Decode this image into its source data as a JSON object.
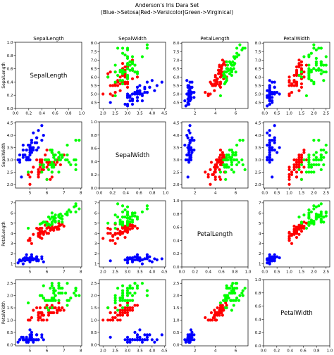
{
  "figure": {
    "title": "Anderson's Iris Dara Set",
    "subtitle": "(Blue->Setosa|Red->Versicolor|Green->Virginical)"
  },
  "chart_data": {
    "type": "scatter",
    "layout": "pairplot",
    "variables": [
      "SepalLength",
      "SepalWidth",
      "PetalLength",
      "PetalWidth"
    ],
    "column_titles": [
      "SepalLength",
      "SepalWidth",
      "PetalLength",
      "PetalWidth"
    ],
    "row_labels": [
      "SepalLength",
      "SepalWidth",
      "PetalLength",
      "PetalWidth"
    ],
    "diagonal_labels": [
      "SepalLength",
      "SepalWidth",
      "PetalLength",
      "PetalWidth"
    ],
    "ranges": {
      "SepalLength": [
        4.15,
        8.05
      ],
      "SepalWidth": [
        1.85,
        4.55
      ],
      "PetalLength": [
        0.7,
        7.2
      ],
      "PetalWidth": [
        -0.05,
        2.65
      ],
      "diagonal": [
        0.0,
        1.0
      ]
    },
    "ticks": {
      "SepalLength": [
        5,
        6,
        7,
        8
      ],
      "SepalLength_as_y": [
        4.5,
        5.0,
        5.5,
        6.0,
        6.5,
        7.0,
        7.5,
        8.0
      ],
      "SepalWidth": [
        2.0,
        2.5,
        3.0,
        3.5,
        4.0,
        4.5
      ],
      "PetalLength": [
        2,
        4,
        6
      ],
      "PetalLength_as_y": [
        1,
        2,
        3,
        4,
        5,
        6,
        7
      ],
      "PetalWidth": [
        0.0,
        0.5,
        1.0,
        1.5,
        2.0,
        2.5
      ],
      "diagonal": [
        0.0,
        0.2,
        0.4,
        0.6,
        0.8,
        1.0
      ]
    },
    "series": [
      {
        "name": "Setosa",
        "color": "#0000ff",
        "points": [
          [
            5.1,
            3.5,
            1.4,
            0.2
          ],
          [
            4.9,
            3.0,
            1.4,
            0.2
          ],
          [
            4.7,
            3.2,
            1.3,
            0.2
          ],
          [
            4.6,
            3.1,
            1.5,
            0.2
          ],
          [
            5.0,
            3.6,
            1.4,
            0.2
          ],
          [
            5.4,
            3.9,
            1.7,
            0.4
          ],
          [
            4.6,
            3.4,
            1.4,
            0.3
          ],
          [
            5.0,
            3.4,
            1.5,
            0.2
          ],
          [
            4.4,
            2.9,
            1.4,
            0.2
          ],
          [
            4.9,
            3.1,
            1.5,
            0.1
          ],
          [
            5.4,
            3.7,
            1.5,
            0.2
          ],
          [
            4.8,
            3.4,
            1.6,
            0.2
          ],
          [
            4.8,
            3.0,
            1.4,
            0.1
          ],
          [
            4.3,
            3.0,
            1.1,
            0.1
          ],
          [
            5.8,
            4.0,
            1.2,
            0.2
          ],
          [
            5.7,
            4.4,
            1.5,
            0.4
          ],
          [
            5.4,
            3.9,
            1.3,
            0.4
          ],
          [
            5.1,
            3.5,
            1.4,
            0.3
          ],
          [
            5.7,
            3.8,
            1.7,
            0.3
          ],
          [
            5.1,
            3.8,
            1.5,
            0.3
          ],
          [
            5.4,
            3.4,
            1.7,
            0.2
          ],
          [
            5.1,
            3.7,
            1.5,
            0.4
          ],
          [
            4.6,
            3.6,
            1.0,
            0.2
          ],
          [
            5.1,
            3.3,
            1.7,
            0.5
          ],
          [
            4.8,
            3.4,
            1.9,
            0.2
          ],
          [
            5.0,
            3.0,
            1.6,
            0.2
          ],
          [
            5.0,
            3.4,
            1.6,
            0.4
          ],
          [
            5.2,
            3.5,
            1.5,
            0.2
          ],
          [
            5.2,
            3.4,
            1.4,
            0.2
          ],
          [
            4.7,
            3.2,
            1.6,
            0.2
          ],
          [
            4.8,
            3.1,
            1.6,
            0.2
          ],
          [
            5.4,
            3.4,
            1.5,
            0.4
          ],
          [
            5.2,
            4.1,
            1.5,
            0.1
          ],
          [
            5.5,
            4.2,
            1.4,
            0.2
          ],
          [
            4.9,
            3.1,
            1.5,
            0.2
          ],
          [
            5.0,
            3.2,
            1.2,
            0.2
          ],
          [
            5.5,
            3.5,
            1.3,
            0.2
          ],
          [
            4.9,
            3.6,
            1.4,
            0.1
          ],
          [
            4.4,
            3.0,
            1.3,
            0.2
          ],
          [
            5.1,
            3.4,
            1.5,
            0.2
          ],
          [
            5.0,
            3.5,
            1.3,
            0.3
          ],
          [
            4.5,
            2.3,
            1.3,
            0.3
          ],
          [
            4.4,
            3.2,
            1.3,
            0.2
          ],
          [
            5.0,
            3.5,
            1.6,
            0.6
          ],
          [
            5.1,
            3.8,
            1.9,
            0.4
          ],
          [
            4.8,
            3.0,
            1.4,
            0.3
          ],
          [
            5.1,
            3.8,
            1.6,
            0.2
          ],
          [
            4.6,
            3.2,
            1.4,
            0.2
          ],
          [
            5.3,
            3.7,
            1.5,
            0.2
          ],
          [
            5.0,
            3.3,
            1.4,
            0.2
          ]
        ]
      },
      {
        "name": "Versicolor",
        "color": "#ff0000",
        "points": [
          [
            7.0,
            3.2,
            4.7,
            1.4
          ],
          [
            6.4,
            3.2,
            4.5,
            1.5
          ],
          [
            6.9,
            3.1,
            4.9,
            1.5
          ],
          [
            5.5,
            2.3,
            4.0,
            1.3
          ],
          [
            6.5,
            2.8,
            4.6,
            1.5
          ],
          [
            5.7,
            2.8,
            4.5,
            1.3
          ],
          [
            6.3,
            3.3,
            4.7,
            1.6
          ],
          [
            4.9,
            2.4,
            3.3,
            1.0
          ],
          [
            6.6,
            2.9,
            4.6,
            1.3
          ],
          [
            5.2,
            2.7,
            3.9,
            1.4
          ],
          [
            5.0,
            2.0,
            3.5,
            1.0
          ],
          [
            5.9,
            3.0,
            4.2,
            1.5
          ],
          [
            6.0,
            2.2,
            4.0,
            1.0
          ],
          [
            6.1,
            2.9,
            4.7,
            1.4
          ],
          [
            5.6,
            2.9,
            3.6,
            1.3
          ],
          [
            6.7,
            3.1,
            4.4,
            1.4
          ],
          [
            5.6,
            3.0,
            4.5,
            1.5
          ],
          [
            5.8,
            2.7,
            4.1,
            1.0
          ],
          [
            6.2,
            2.2,
            4.5,
            1.5
          ],
          [
            5.6,
            2.5,
            3.9,
            1.1
          ],
          [
            5.9,
            3.2,
            4.8,
            1.8
          ],
          [
            6.1,
            2.8,
            4.0,
            1.3
          ],
          [
            6.3,
            2.5,
            4.9,
            1.5
          ],
          [
            6.1,
            2.8,
            4.7,
            1.2
          ],
          [
            6.4,
            2.9,
            4.3,
            1.3
          ],
          [
            6.6,
            3.0,
            4.4,
            1.4
          ],
          [
            6.8,
            2.8,
            4.8,
            1.4
          ],
          [
            6.7,
            3.0,
            5.0,
            1.7
          ],
          [
            6.0,
            2.9,
            4.5,
            1.5
          ],
          [
            5.7,
            2.6,
            3.5,
            1.0
          ],
          [
            5.5,
            2.4,
            3.8,
            1.1
          ],
          [
            5.5,
            2.4,
            3.7,
            1.0
          ],
          [
            5.8,
            2.7,
            3.9,
            1.2
          ],
          [
            6.0,
            2.7,
            5.1,
            1.6
          ],
          [
            5.4,
            3.0,
            4.5,
            1.5
          ],
          [
            6.0,
            3.4,
            4.5,
            1.6
          ],
          [
            6.7,
            3.1,
            4.7,
            1.5
          ],
          [
            6.3,
            2.3,
            4.4,
            1.3
          ],
          [
            5.6,
            3.0,
            4.1,
            1.3
          ],
          [
            5.5,
            2.5,
            4.0,
            1.3
          ],
          [
            5.5,
            2.6,
            4.4,
            1.2
          ],
          [
            6.1,
            3.0,
            4.6,
            1.4
          ],
          [
            5.8,
            2.6,
            4.0,
            1.2
          ],
          [
            5.0,
            2.3,
            3.3,
            1.0
          ],
          [
            5.6,
            2.7,
            4.2,
            1.3
          ],
          [
            5.7,
            3.0,
            4.2,
            1.2
          ],
          [
            5.7,
            2.9,
            4.2,
            1.3
          ],
          [
            6.2,
            2.9,
            4.3,
            1.3
          ],
          [
            5.1,
            2.5,
            3.0,
            1.1
          ],
          [
            5.7,
            2.8,
            4.1,
            1.3
          ]
        ]
      },
      {
        "name": "Virginica",
        "color": "#00ff00",
        "points": [
          [
            6.3,
            3.3,
            6.0,
            2.5
          ],
          [
            5.8,
            2.7,
            5.1,
            1.9
          ],
          [
            7.1,
            3.0,
            5.9,
            2.1
          ],
          [
            6.3,
            2.9,
            5.6,
            1.8
          ],
          [
            6.5,
            3.0,
            5.8,
            2.2
          ],
          [
            7.6,
            3.0,
            6.6,
            2.1
          ],
          [
            4.9,
            2.5,
            4.5,
            1.7
          ],
          [
            7.3,
            2.9,
            6.3,
            1.8
          ],
          [
            6.7,
            2.5,
            5.8,
            1.8
          ],
          [
            7.2,
            3.6,
            6.1,
            2.5
          ],
          [
            6.5,
            3.2,
            5.1,
            2.0
          ],
          [
            6.4,
            2.7,
            5.3,
            1.9
          ],
          [
            6.8,
            3.0,
            5.5,
            2.1
          ],
          [
            5.7,
            2.5,
            5.0,
            2.0
          ],
          [
            5.8,
            2.8,
            5.1,
            2.4
          ],
          [
            6.4,
            3.2,
            5.3,
            2.3
          ],
          [
            6.5,
            3.0,
            5.5,
            1.8
          ],
          [
            7.7,
            3.8,
            6.7,
            2.2
          ],
          [
            7.7,
            2.6,
            6.9,
            2.3
          ],
          [
            6.0,
            2.2,
            5.0,
            1.5
          ],
          [
            6.9,
            3.2,
            5.7,
            2.3
          ],
          [
            5.6,
            2.8,
            4.9,
            2.0
          ],
          [
            7.7,
            2.8,
            6.7,
            2.0
          ],
          [
            6.3,
            2.7,
            4.9,
            1.8
          ],
          [
            6.7,
            3.3,
            5.7,
            2.1
          ],
          [
            7.2,
            3.2,
            6.0,
            1.8
          ],
          [
            6.2,
            2.8,
            4.8,
            1.8
          ],
          [
            6.1,
            3.0,
            4.9,
            1.8
          ],
          [
            6.4,
            2.8,
            5.6,
            2.1
          ],
          [
            7.2,
            3.0,
            5.8,
            1.6
          ],
          [
            7.4,
            2.8,
            6.1,
            1.9
          ],
          [
            7.9,
            3.8,
            6.4,
            2.0
          ],
          [
            6.4,
            2.8,
            5.6,
            2.2
          ],
          [
            6.3,
            2.8,
            5.1,
            1.5
          ],
          [
            6.1,
            2.6,
            5.6,
            1.4
          ],
          [
            7.7,
            3.0,
            6.1,
            2.3
          ],
          [
            6.3,
            3.4,
            5.6,
            2.4
          ],
          [
            6.4,
            3.1,
            5.5,
            1.8
          ],
          [
            6.0,
            3.0,
            4.8,
            1.8
          ],
          [
            6.9,
            3.1,
            5.4,
            2.1
          ],
          [
            6.7,
            3.1,
            5.6,
            2.4
          ],
          [
            6.9,
            3.1,
            5.1,
            2.3
          ],
          [
            5.8,
            2.7,
            5.1,
            1.9
          ],
          [
            6.8,
            3.2,
            5.9,
            2.3
          ],
          [
            6.7,
            3.3,
            5.7,
            2.5
          ],
          [
            6.7,
            3.0,
            5.2,
            2.3
          ],
          [
            6.3,
            2.5,
            5.0,
            1.9
          ],
          [
            6.5,
            3.0,
            5.2,
            2.0
          ],
          [
            6.2,
            3.4,
            5.4,
            2.3
          ],
          [
            5.9,
            3.0,
            5.1,
            1.8
          ]
        ]
      }
    ]
  }
}
